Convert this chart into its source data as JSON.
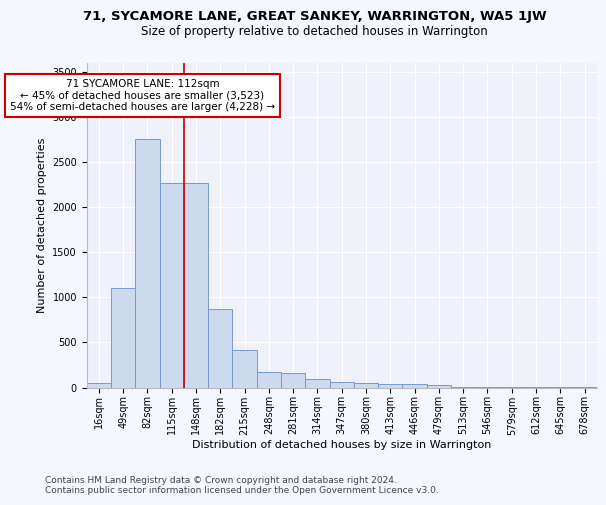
{
  "title1": "71, SYCAMORE LANE, GREAT SANKEY, WARRINGTON, WA5 1JW",
  "title2": "Size of property relative to detached houses in Warrington",
  "xlabel": "Distribution of detached houses by size in Warrington",
  "ylabel": "Number of detached properties",
  "categories": [
    "16sqm",
    "49sqm",
    "82sqm",
    "115sqm",
    "148sqm",
    "182sqm",
    "215sqm",
    "248sqm",
    "281sqm",
    "314sqm",
    "347sqm",
    "380sqm",
    "413sqm",
    "446sqm",
    "479sqm",
    "513sqm",
    "546sqm",
    "579sqm",
    "612sqm",
    "645sqm",
    "678sqm"
  ],
  "values": [
    50,
    1100,
    2750,
    2270,
    2270,
    870,
    420,
    170,
    160,
    90,
    60,
    55,
    40,
    35,
    28,
    10,
    10,
    5,
    5,
    3,
    2
  ],
  "bar_color": "#ccd9ee",
  "bar_edge_color": "#7799cc",
  "vline_x": 3.5,
  "vline_color": "#cc0000",
  "annotation_text": "71 SYCAMORE LANE: 112sqm\n← 45% of detached houses are smaller (3,523)\n54% of semi-detached houses are larger (4,228) →",
  "annotation_box_color": "#ffffff",
  "annotation_box_edge": "#cc0000",
  "ylim": [
    0,
    3600
  ],
  "yticks": [
    0,
    500,
    1000,
    1500,
    2000,
    2500,
    3000,
    3500
  ],
  "bg_color": "#eef1fa",
  "grid_color": "#ffffff",
  "footer": "Contains HM Land Registry data © Crown copyright and database right 2024.\nContains public sector information licensed under the Open Government Licence v3.0.",
  "title1_fontsize": 9.5,
  "title2_fontsize": 8.5,
  "xlabel_fontsize": 8,
  "ylabel_fontsize": 8,
  "tick_fontsize": 7,
  "annotation_fontsize": 7.5,
  "footer_fontsize": 6.5
}
